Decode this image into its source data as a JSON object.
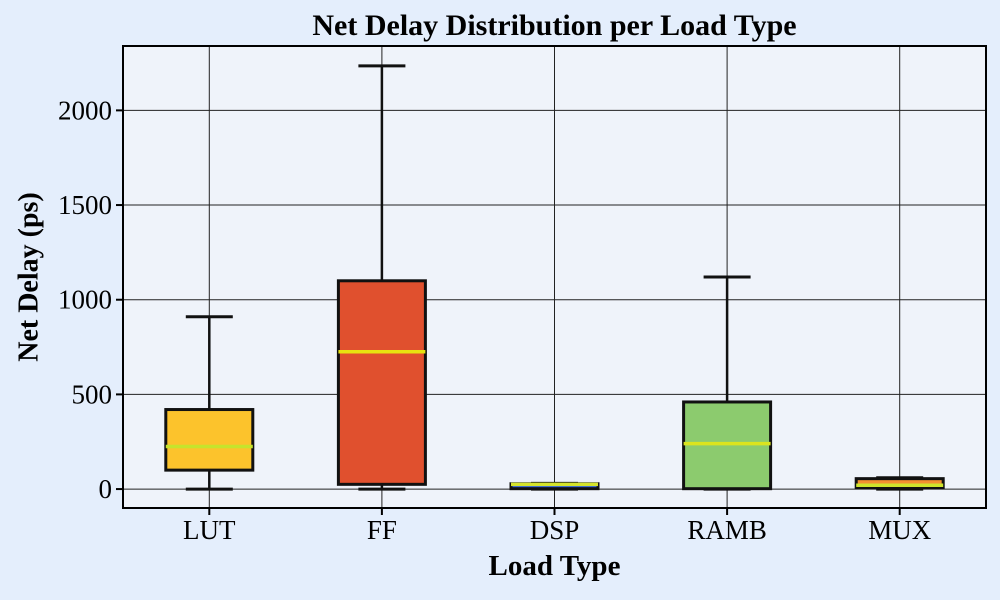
{
  "figure": {
    "background_color": "#e4eefc",
    "plot_background_color": "#eff3fa",
    "grid_color": "#222222",
    "box_edge_color": "#111111",
    "text_color": "#000000"
  },
  "chart_data": {
    "type": "boxplot",
    "title": "Net Delay Distribution per Load Type",
    "xlabel": "Load Type",
    "ylabel": "Net Delay (ps)",
    "categories": [
      "LUT",
      "FF",
      "DSP",
      "RAMB",
      "MUX"
    ],
    "yticks": [
      0,
      500,
      1000,
      1500,
      2000
    ],
    "ylim": [
      -100,
      2340
    ],
    "grid": true,
    "legend": "none",
    "series": [
      {
        "category": "LUT",
        "min": 0,
        "q1": 100,
        "median": 225,
        "q3": 420,
        "max": 910,
        "fill": "#FCC32C",
        "median_color": "#C6E42C"
      },
      {
        "category": "FF",
        "min": 0,
        "q1": 25,
        "median": 725,
        "q3": 1100,
        "max": 2235,
        "fill": "#E0502E",
        "median_color": "#E8E310"
      },
      {
        "category": "DSP",
        "min": 0,
        "q1": 2,
        "median": 25,
        "q3": 28,
        "max": 30,
        "fill": "#2B5CE0",
        "median_color": "#D5E42C"
      },
      {
        "category": "RAMB",
        "min": 0,
        "q1": 2,
        "median": 240,
        "q3": 460,
        "max": 1120,
        "fill": "#8CCB6E",
        "median_color": "#DCE41E"
      },
      {
        "category": "MUX",
        "min": 0,
        "q1": 8,
        "median": 20,
        "q3": 55,
        "max": 60,
        "fill": "#F29030",
        "median_color": "#CDE42C"
      }
    ]
  }
}
